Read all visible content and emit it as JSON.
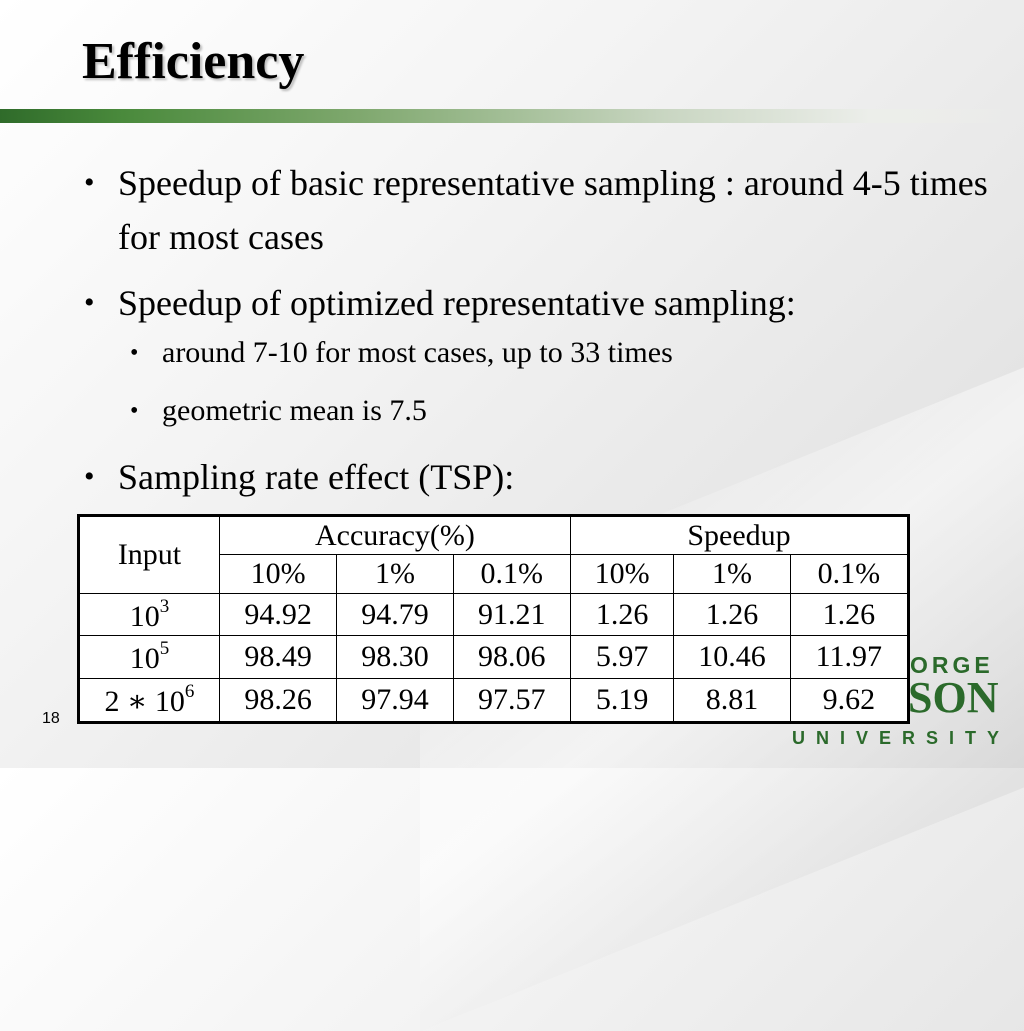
{
  "slide": {
    "title": "Efficiency",
    "page_number": "18"
  },
  "bullets": [
    {
      "text": "Speedup of basic representative sampling : around 4-5 times for most cases"
    },
    {
      "text": "Speedup of optimized representative sampling:",
      "sub": [
        {
          "text": "around 7-10 for most cases, up to 33 times"
        },
        {
          "text": "geometric mean is 7.5"
        }
      ]
    },
    {
      "text": "Sampling rate effect (TSP):"
    }
  ],
  "bullet_glyph": "•",
  "table": {
    "input_header": "Input",
    "group_headers": [
      "Accuracy(%)",
      "Speedup"
    ],
    "sub_headers": [
      "10%",
      "1%",
      "0.1%",
      "10%",
      "1%",
      "0.1%"
    ],
    "rows": [
      {
        "input_base": "10",
        "input_exp": "3",
        "values": [
          "94.92",
          "94.79",
          "91.21",
          "1.26",
          "1.26",
          "1.26"
        ]
      },
      {
        "input_base": "10",
        "input_exp": "5",
        "values": [
          "98.49",
          "98.30",
          "98.06",
          "5.97",
          "10.46",
          "11.97"
        ]
      },
      {
        "input_base": "2 ∗ 10",
        "input_exp": "6",
        "values": [
          "98.26",
          "97.94",
          "97.57",
          "5.19",
          "8.81",
          "9.62"
        ]
      }
    ]
  },
  "logo": {
    "line1": "ORGE",
    "line2": "SON",
    "line3": "UNIVERSITY",
    "color": "#2b6a2b"
  },
  "colors": {
    "title_bar_dark": "#2f6b2a",
    "title_bar_light": "#c9d6c2"
  }
}
